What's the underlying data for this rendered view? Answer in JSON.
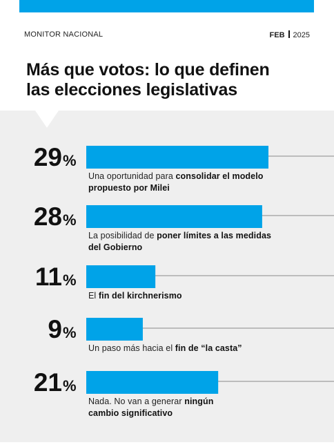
{
  "header": {
    "source": "MONITOR NACIONAL",
    "month": "FEB",
    "year": "2025"
  },
  "headline": {
    "line1": "Más que votos: lo que definen",
    "line2": "las elecciones legislativas"
  },
  "colors": {
    "accent": "#00a3e8",
    "panel": "#efefef",
    "leader": "#8a8a8a"
  },
  "chart_data": {
    "type": "bar",
    "orientation": "horizontal",
    "unit": "%",
    "categories": [
      "Una oportunidad para consolidar el modelo propuesto por Milei",
      "La posibilidad de poner límites a las medidas del Gobierno",
      "El fin del kirchnerismo",
      "Un paso más hacia el fin de “la casta”",
      "Nada. No van a generar ningún cambio significativo"
    ],
    "values": [
      29,
      28,
      11,
      9,
      21
    ],
    "labels": [
      [
        {
          "t": "Una oportunidad para "
        },
        {
          "t": "consolidar el modelo",
          "b": true
        },
        {
          "br": true
        },
        {
          "t": "propuesto por Milei",
          "b": true
        }
      ],
      [
        {
          "t": "La posibilidad de "
        },
        {
          "t": "poner límites a las medidas",
          "b": true
        },
        {
          "br": true
        },
        {
          "t": "del Gobierno",
          "b": true
        }
      ],
      [
        {
          "t": "El "
        },
        {
          "t": "fin del kirchnerismo",
          "b": true
        }
      ],
      [
        {
          "t": "Un paso más hacia el "
        },
        {
          "t": "fin de “la casta”",
          "b": true
        }
      ],
      [
        {
          "t": "Nada. No van a generar "
        },
        {
          "t": "ningún",
          "b": true
        },
        {
          "br": true
        },
        {
          "t": "cambio significativo",
          "b": true
        }
      ]
    ],
    "xlim": [
      0,
      29
    ]
  }
}
